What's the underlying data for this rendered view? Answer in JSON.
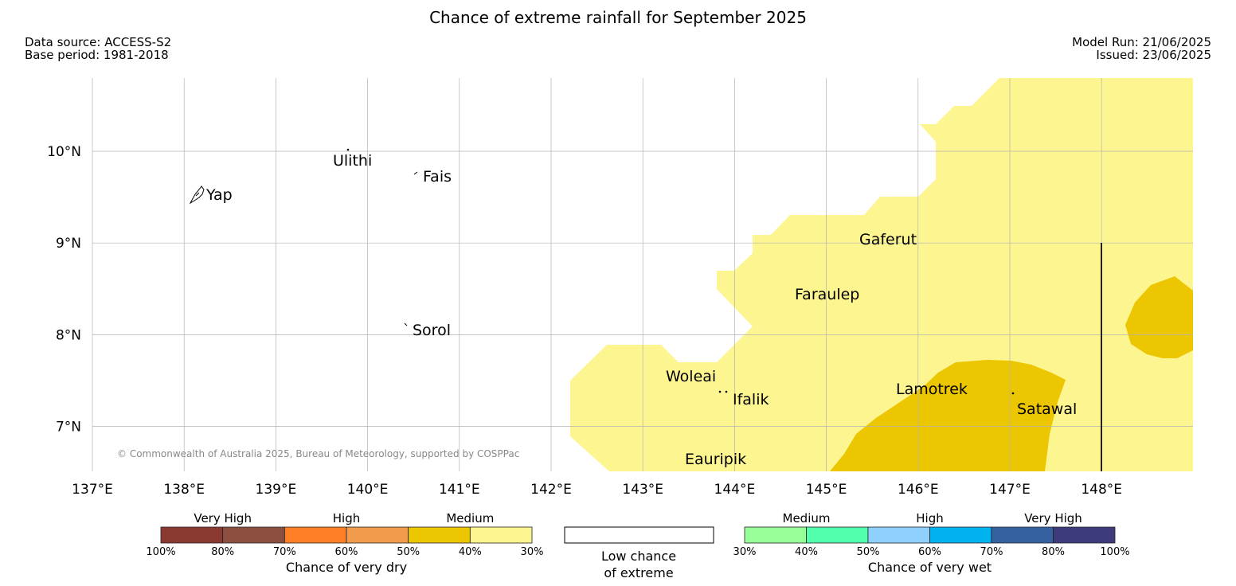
{
  "header": {
    "title": "Chance of extreme rainfall for September 2025",
    "data_source": "Data source: ACCESS-S2",
    "base_period": "Base period: 1981-2018",
    "model_run": "Model Run: 21/06/2025",
    "issued": "Issued: 23/06/2025"
  },
  "map": {
    "lon_ticks": [
      "137°E",
      "138°E",
      "139°E",
      "140°E",
      "141°E",
      "142°E",
      "143°E",
      "144°E",
      "145°E",
      "146°E",
      "147°E",
      "148°E"
    ],
    "lat_ticks": [
      "10°N",
      "9°N",
      "8°N",
      "7°N"
    ],
    "extent": {
      "lon_min": 137,
      "lon_max": 149,
      "lat_min": 6.5,
      "lat_max": 10.8
    },
    "places": [
      {
        "name": "Yap",
        "lon": 138.1,
        "lat": 9.5
      },
      {
        "name": "Ulithi",
        "lon": 139.75,
        "lat": 10.0
      },
      {
        "name": "Fais",
        "lon": 140.52,
        "lat": 9.77
      },
      {
        "name": "Sorol",
        "lon": 140.39,
        "lat": 8.14
      },
      {
        "name": "Gaferut",
        "lon": 146.38,
        "lat": 9.23
      },
      {
        "name": "Faraulep",
        "lon": 144.53,
        "lat": 8.6
      },
      {
        "name": "Woleai",
        "lon": 143.89,
        "lat": 7.36
      },
      {
        "name": "Ifalik",
        "lon": 144.45,
        "lat": 7.25
      },
      {
        "name": "Lamotrek",
        "lon": 146.33,
        "lat": 7.5
      },
      {
        "name": "Satawal",
        "lon": 147.03,
        "lat": 7.35
      },
      {
        "name": "Eauripik",
        "lon": 143.04,
        "lat": 6.68
      }
    ],
    "colors": {
      "dry_40_30": "#fdf58f",
      "dry_50_40": "#ecc600",
      "grid": "#b0b0b0"
    },
    "copyright": "© Commonwealth of Australia 2025, Bureau of Meteorology, supported by COSPPac"
  },
  "legend": {
    "dry": {
      "groups": [
        "Very High",
        "High",
        "Medium"
      ],
      "colors": [
        "#8b3a32",
        "#8b5040",
        "#ff7f27",
        "#f09c4c",
        "#ecc600",
        "#fdf58f"
      ],
      "percents": [
        "100%",
        "80%",
        "70%",
        "60%",
        "50%",
        "40%",
        "30%"
      ],
      "caption": "Chance of very dry"
    },
    "neutral": {
      "caption_line1": "Low chance",
      "caption_line2": "of extreme"
    },
    "wet": {
      "groups": [
        "Medium",
        "High",
        "Very High"
      ],
      "colors": [
        "#99ff99",
        "#52ffab",
        "#8fd0ff",
        "#00b2ee",
        "#3561a1",
        "#3e3b7c"
      ],
      "percents": [
        "30%",
        "40%",
        "50%",
        "60%",
        "70%",
        "80%",
        "100%"
      ],
      "caption": "Chance of very wet"
    }
  }
}
